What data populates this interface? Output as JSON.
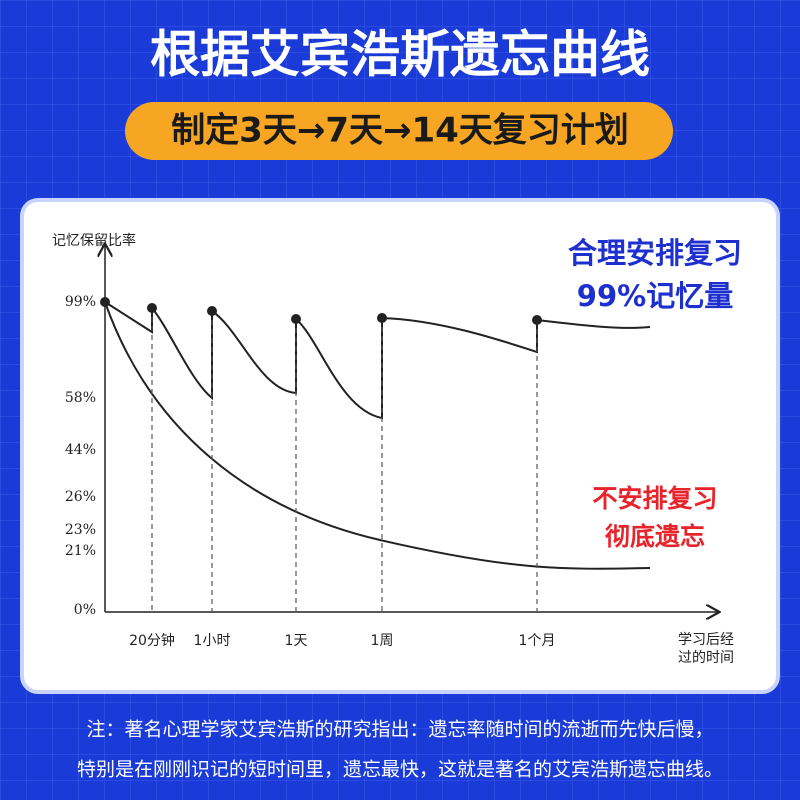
{
  "header": {
    "title": "根据艾宾浩斯遗忘曲线",
    "subtitle": "制定3天→7天→14天复习计划"
  },
  "diagram": {
    "y_label": "记忆保留比率",
    "y_ticks": [
      "99%",
      "58%",
      "44%",
      "26%",
      "23%",
      "21%",
      "0%"
    ],
    "x_ticks": [
      "20分钟",
      "1小时",
      "1天",
      "1周",
      "1个月"
    ],
    "x_label": [
      "学习后经",
      "过的时间"
    ],
    "review_note": [
      "合理安排复习",
      "99%记忆量"
    ],
    "no_review_note": [
      "不安排复习",
      "彻底遗忘"
    ]
  },
  "footer": [
    "注：著名心理学家艾宾浩斯的研究指出：遗忘率随时间的流逝而先快后慢，",
    "特别是在刚刚识记的短时间里，遗忘最快，这就是著名的艾宾浩斯遗忘曲线。"
  ]
}
